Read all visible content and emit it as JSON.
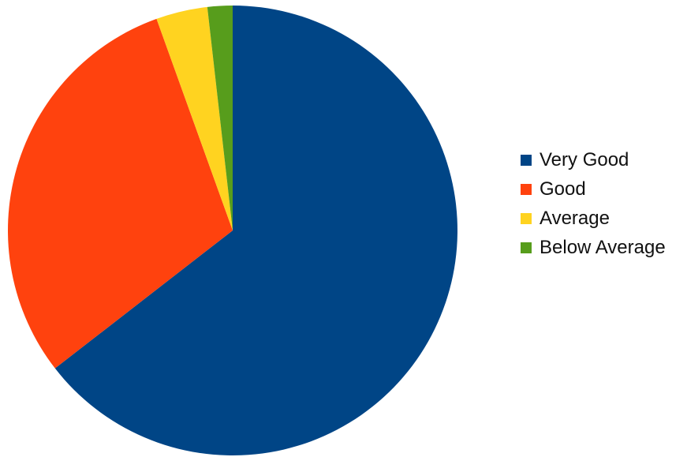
{
  "chart_data": {
    "type": "pie",
    "title": "",
    "legend_position": "right",
    "start_angle_deg": 0,
    "direction": "clockwise",
    "series": [
      {
        "values": [
          64.5,
          30.0,
          3.7,
          1.8
        ],
        "categories": [
          "Very Good",
          "Good",
          "Average",
          "Below Average"
        ],
        "colors": [
          "#004586",
          "#ff420e",
          "#ffd320",
          "#579d1c"
        ]
      }
    ]
  }
}
